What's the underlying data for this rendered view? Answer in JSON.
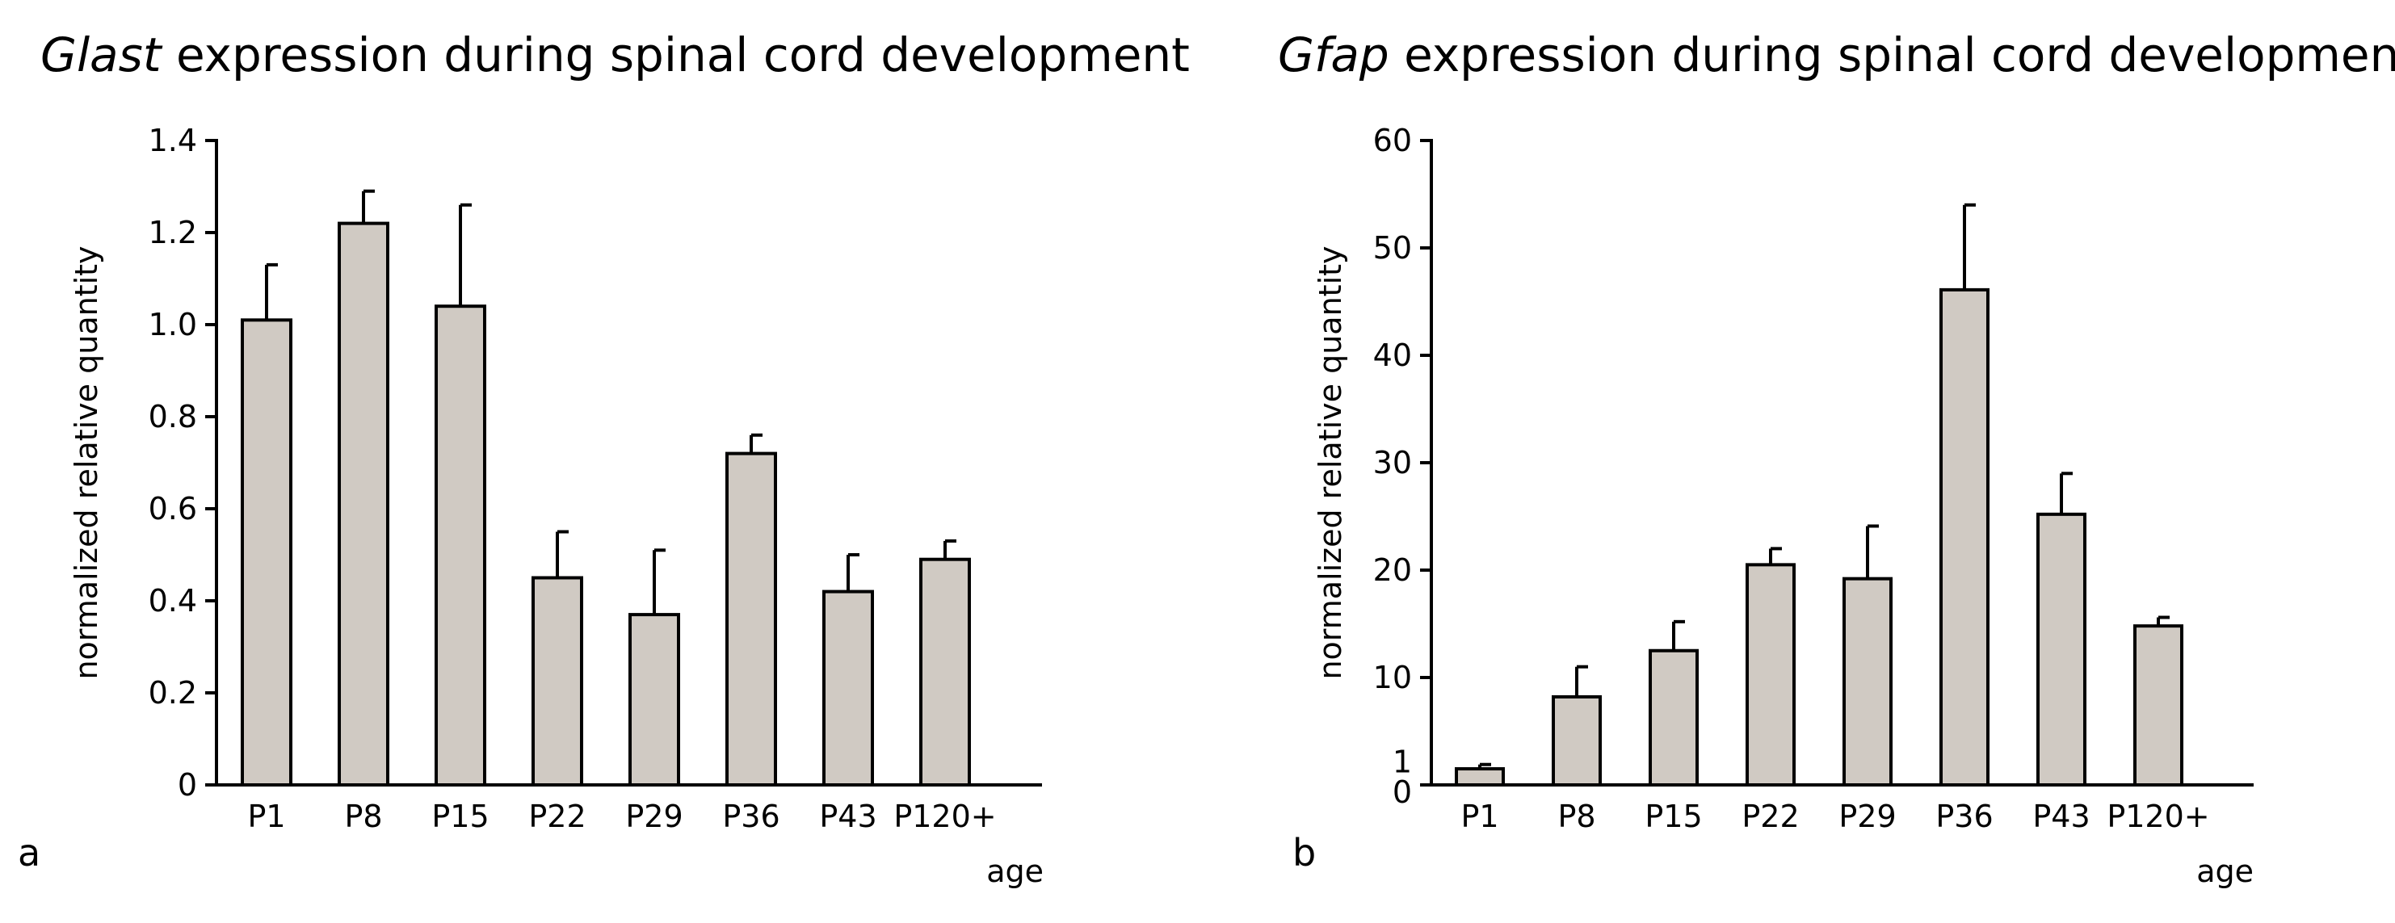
{
  "chart_data": [
    {
      "type": "bar",
      "panel_label": "a",
      "title_gene": "Glast",
      "title_rest": " expression during spinal cord development",
      "ylabel": "normalized relative quantity",
      "xlabel": "age",
      "categories": [
        "P1",
        "P8",
        "P15",
        "P22",
        "P29",
        "P36",
        "P43",
        "P120+"
      ],
      "values": [
        1.01,
        1.22,
        1.04,
        0.45,
        0.37,
        0.72,
        0.42,
        0.49
      ],
      "errors": [
        0.12,
        0.07,
        0.22,
        0.1,
        0.14,
        0.04,
        0.08,
        0.04
      ],
      "ylim": [
        0,
        1.4
      ],
      "yticks": [
        0,
        0.2,
        0.4,
        0.6,
        0.8,
        1.0,
        1.2,
        1.4
      ],
      "ytick_labels": [
        "0",
        "0.2",
        "0.4",
        "0.6",
        "0.8",
        "1.0",
        "1.2",
        "1.4"
      ],
      "bar_fill": "#d0cac3",
      "grid": false
    },
    {
      "type": "bar",
      "panel_label": "b",
      "title_gene": "Gfap",
      "title_rest": " expression during spinal cord development",
      "ylabel": "normalized relative quantity",
      "xlabel": "age",
      "categories": [
        "P1",
        "P8",
        "P15",
        "P22",
        "P29",
        "P36",
        "P43",
        "P120+"
      ],
      "values": [
        1.5,
        8.2,
        12.5,
        20.5,
        19.2,
        46.1,
        25.2,
        14.8
      ],
      "errors": [
        0.4,
        2.8,
        2.7,
        1.5,
        4.9,
        7.9,
        3.8,
        0.8
      ],
      "ylim": [
        0,
        60
      ],
      "yticks": [
        0,
        1,
        10,
        20,
        30,
        40,
        50,
        60
      ],
      "ytick_labels": [
        "0",
        "1",
        "10",
        "20",
        "30",
        "40",
        "50",
        "60"
      ],
      "bar_fill": "#d0cac3",
      "grid": false
    }
  ]
}
